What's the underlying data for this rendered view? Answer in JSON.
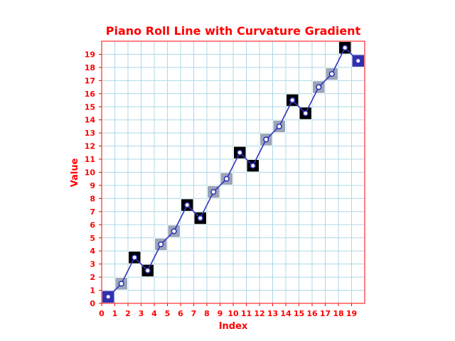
{
  "chart_data": {
    "type": "line",
    "title": "Piano Roll Line with Curvature Gradient",
    "xlabel": "Index",
    "ylabel": "Value",
    "xlim": [
      0,
      20
    ],
    "ylim": [
      0,
      20
    ],
    "x_ticks": [
      "0",
      "1",
      "2",
      "3",
      "4",
      "5",
      "6",
      "7",
      "8",
      "9",
      "10",
      "11",
      "12",
      "13",
      "14",
      "15",
      "16",
      "17",
      "18",
      "19"
    ],
    "y_ticks": [
      "0",
      "1",
      "2",
      "3",
      "4",
      "5",
      "6",
      "7",
      "8",
      "9",
      "10",
      "11",
      "12",
      "13",
      "14",
      "15",
      "16",
      "17",
      "18",
      "19"
    ],
    "grid": true,
    "series": [
      {
        "x": [
          0,
          1,
          2,
          3,
          4,
          5,
          6,
          7,
          8,
          9,
          10,
          11,
          12,
          13,
          14,
          15,
          16,
          17,
          18,
          19
        ],
        "values": [
          0,
          1,
          3,
          2,
          4,
          5,
          7,
          6,
          8,
          9,
          11,
          10,
          12,
          13,
          15,
          14,
          16,
          17,
          19,
          18
        ],
        "curvature": [
          "edge",
          "flat",
          "peak",
          "peak",
          "flat",
          "flat",
          "peak",
          "peak",
          "flat",
          "flat",
          "peak",
          "peak",
          "flat",
          "flat",
          "peak",
          "peak",
          "flat",
          "flat",
          "peak",
          "edge"
        ]
      }
    ],
    "colors": {
      "text": "#ff0000",
      "axes": "#ff0000",
      "grid": "#add8e6",
      "line": "#3333bb",
      "marker_face": "#ffffff",
      "cell_flat": "#9aa6b8",
      "cell_peak": "#000000",
      "cell_edge": "#3030b0"
    }
  }
}
